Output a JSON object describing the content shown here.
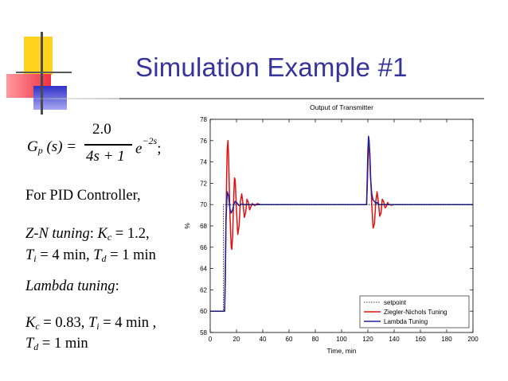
{
  "slide": {
    "title": "Simulation Example #1"
  },
  "formula": {
    "lhs_G": "G",
    "lhs_sub": "p",
    "lhs_args": "(s) =",
    "numerator": "2.0",
    "denominator": "4s + 1",
    "exp_base": "e",
    "exp_power": "−2s",
    "end": ";"
  },
  "text": {
    "pid_intro": "For PID Controller,",
    "zn_label": "Z-N tuning",
    "zn_kc_var": "K",
    "zn_kc_sub": "c",
    "zn_kc_val": " = 1.2,",
    "zn_ti_var": "T",
    "zn_ti_sub": "i",
    "zn_ti_val": " = 4 min, ",
    "zn_td_var": "T",
    "zn_td_sub": "d",
    "zn_td_val": " = 1 min",
    "lambda_label": "Lambda tuning",
    "lam_kc_var": "K",
    "lam_kc_sub": "c",
    "lam_kc_val": " = 0.83, ",
    "lam_ti_var": "T",
    "lam_ti_sub": "i",
    "lam_ti_val": " = 4 min ,",
    "lam_td_var": "T",
    "lam_td_sub": "d",
    "lam_td_val": " = 1 min"
  },
  "chart_data": {
    "type": "line",
    "title": "Output of Transmitter",
    "xlabel": "Time, min",
    "ylabel": "%",
    "xlim": [
      0,
      200
    ],
    "ylim": [
      58,
      78
    ],
    "xticks": [
      0,
      20,
      40,
      60,
      80,
      100,
      120,
      140,
      160,
      180,
      200
    ],
    "yticks": [
      58,
      60,
      62,
      64,
      66,
      68,
      70,
      72,
      74,
      76,
      78
    ],
    "grid": false,
    "legend_position": "bottom-right",
    "series": [
      {
        "name": "setpoint",
        "color": "#000000",
        "style": "dotted",
        "x": [
          0,
          10,
          10,
          200
        ],
        "y": [
          60,
          60,
          70,
          70
        ]
      },
      {
        "name": "Ziegler-Nichols Tuning",
        "color": "#e01010",
        "style": "solid",
        "x": [
          0,
          11,
          11.5,
          12,
          12.5,
          13,
          13.5,
          14,
          15,
          16,
          16.5,
          17,
          18,
          18.5,
          19,
          20,
          21,
          22,
          23,
          24,
          25,
          26,
          27,
          28,
          29,
          30,
          31,
          32,
          34,
          36,
          38,
          40,
          45,
          60,
          80,
          100,
          119,
          119.5,
          120,
          120.5,
          121,
          121.5,
          122,
          123,
          124,
          125,
          126,
          127,
          128,
          129,
          130,
          131,
          132,
          133,
          134,
          135,
          136,
          138,
          140,
          145,
          160,
          180,
          200
        ],
        "y": [
          60,
          60,
          63,
          68,
          72.5,
          75.2,
          76,
          74.5,
          69,
          66,
          65.8,
          67,
          71,
          72.5,
          72.3,
          69.5,
          67.2,
          68,
          70.3,
          71,
          70,
          68.8,
          69.3,
          70.5,
          70.2,
          69.5,
          69.8,
          70.1,
          69.9,
          70.1,
          70,
          70,
          70,
          70,
          70,
          70,
          70,
          71.5,
          73.5,
          75.2,
          75.6,
          74.8,
          73,
          70,
          67.8,
          68.2,
          70.3,
          71.2,
          70.2,
          68.9,
          69.2,
          70.5,
          70.3,
          69.7,
          69.8,
          70.2,
          70,
          69.95,
          70,
          70,
          70,
          70,
          70
        ]
      },
      {
        "name": "Lambda Tuning",
        "color": "#2020a0",
        "style": "solid",
        "x": [
          0,
          11,
          11.5,
          12,
          13,
          14,
          15,
          16,
          17,
          18,
          19,
          20,
          22,
          24,
          26,
          30,
          40,
          60,
          80,
          100,
          119,
          119.5,
          120,
          120.5,
          121,
          121.5,
          122,
          123,
          124,
          125,
          126,
          127,
          128,
          130,
          135,
          140,
          160,
          180,
          200
        ],
        "y": [
          60,
          60,
          64,
          68.5,
          71.2,
          70.8,
          69.6,
          69.2,
          69.5,
          70,
          70.3,
          70.2,
          69.9,
          70.05,
          70,
          70,
          70,
          70,
          70,
          70,
          70,
          72.5,
          75,
          76.4,
          76,
          74.5,
          72.6,
          71,
          70.4,
          70.3,
          70.1,
          70.2,
          70,
          70,
          70,
          70,
          70,
          70,
          70
        ]
      }
    ]
  }
}
